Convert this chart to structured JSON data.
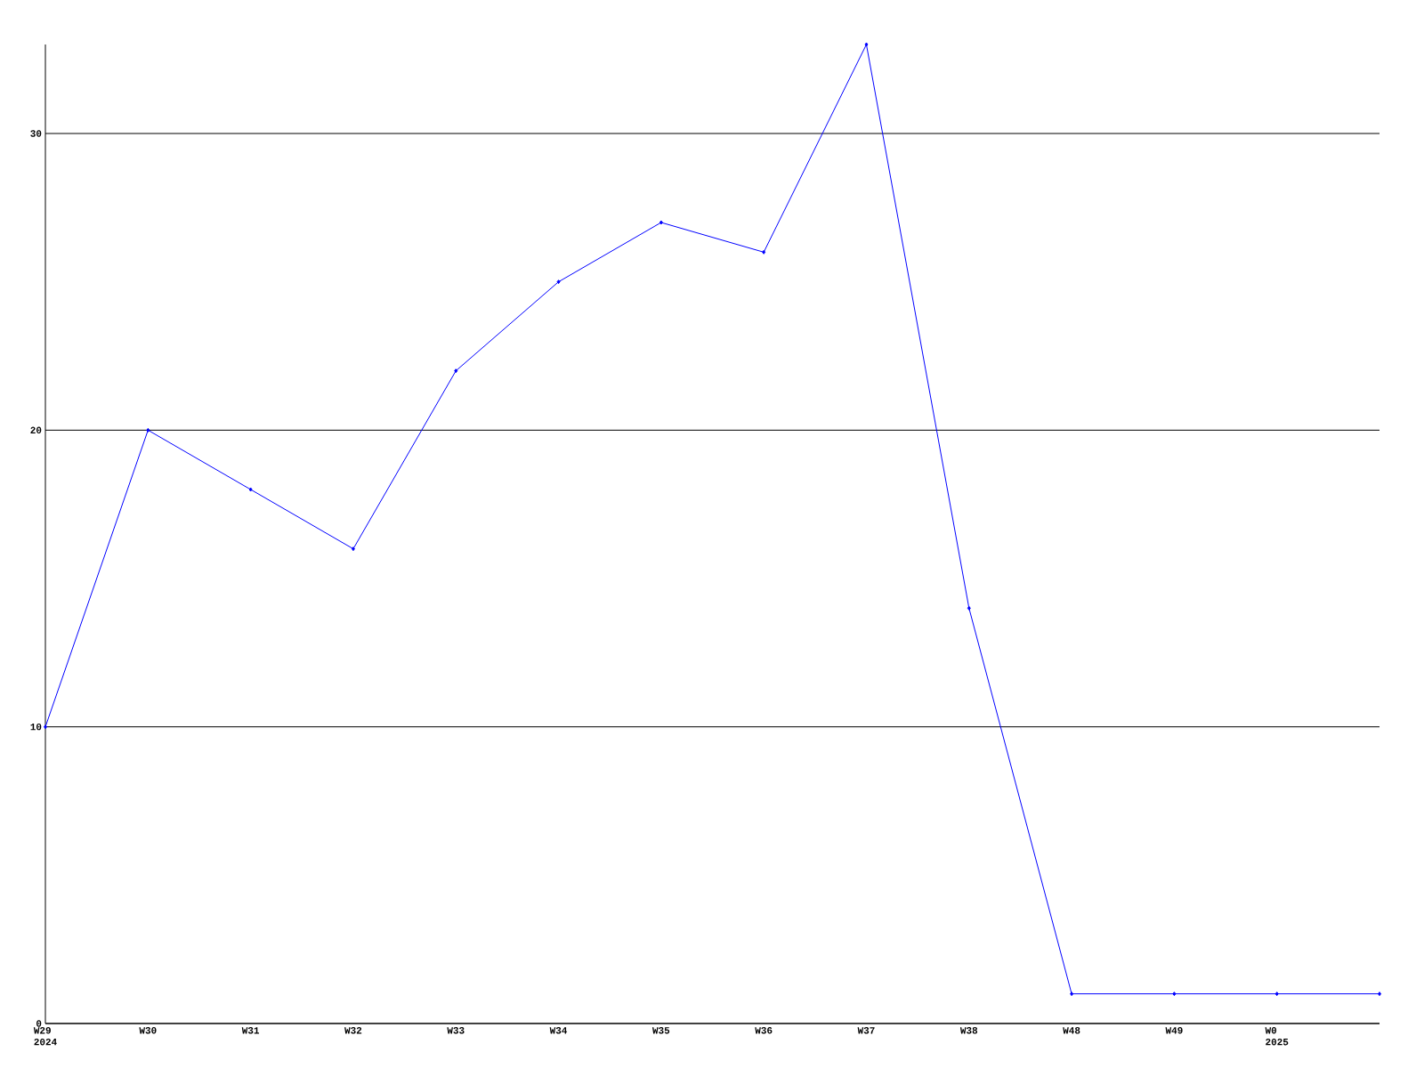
{
  "chart_data": {
    "type": "line",
    "categories": [
      "W29\n2024",
      "W30",
      "W31",
      "W32",
      "W33",
      "W34",
      "W35",
      "W36",
      "W37",
      "W38",
      "W48",
      "W49",
      "W0\n2025",
      null
    ],
    "values": [
      10,
      20,
      18,
      16,
      22,
      25,
      27,
      26,
      33,
      14,
      1,
      1,
      1,
      1
    ],
    "color": "#0000ff",
    "marker": "diamond",
    "line_style": "solid",
    "ylim": [
      0,
      33
    ],
    "yticks": [
      0,
      10,
      20,
      30
    ],
    "grid": "y"
  }
}
